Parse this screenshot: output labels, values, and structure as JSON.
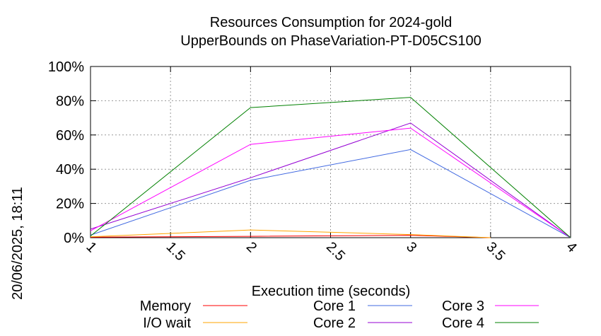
{
  "chart_data": {
    "type": "line",
    "title": [
      "Resources Consumption for 2024-gold",
      "UpperBounds on PhaseVariation-PT-D05CS100"
    ],
    "xlabel": "Execution time (seconds)",
    "ylabel": "",
    "xlim": [
      1,
      4
    ],
    "ylim": [
      0,
      100
    ],
    "x_ticks": [
      "1",
      "1.5",
      "2",
      "2.5",
      "3",
      "3.5",
      "4"
    ],
    "y_ticks": [
      "0%",
      "20%",
      "40%",
      "60%",
      "80%",
      "100%"
    ],
    "grid": true,
    "legend_position": "bottom",
    "side_label": "20/06/2025, 18:11",
    "series": [
      {
        "name": "Memory",
        "color": "#ff0000",
        "x": [
          1,
          2,
          3,
          3.5
        ],
        "y": [
          0.3,
          0.8,
          1.4,
          0
        ]
      },
      {
        "name": "I/O wait",
        "color": "#ffa500",
        "x": [
          1,
          2,
          3,
          3.5
        ],
        "y": [
          0.5,
          4.5,
          1.8,
          0
        ]
      },
      {
        "name": "Core 1",
        "color": "#4169e1",
        "x": [
          1,
          2,
          3,
          4
        ],
        "y": [
          1.5,
          33.5,
          51.5,
          0
        ]
      },
      {
        "name": "Core 2",
        "color": "#9400d3",
        "x": [
          1,
          2,
          3,
          4
        ],
        "y": [
          5,
          35,
          67,
          0
        ]
      },
      {
        "name": "Core 3",
        "color": "#ff00ff",
        "x": [
          1,
          2,
          3,
          4
        ],
        "y": [
          4,
          54.5,
          64,
          0
        ]
      },
      {
        "name": "Core 4",
        "color": "#008000",
        "x": [
          1,
          2,
          3,
          4
        ],
        "y": [
          1,
          76,
          82,
          0
        ]
      }
    ]
  }
}
